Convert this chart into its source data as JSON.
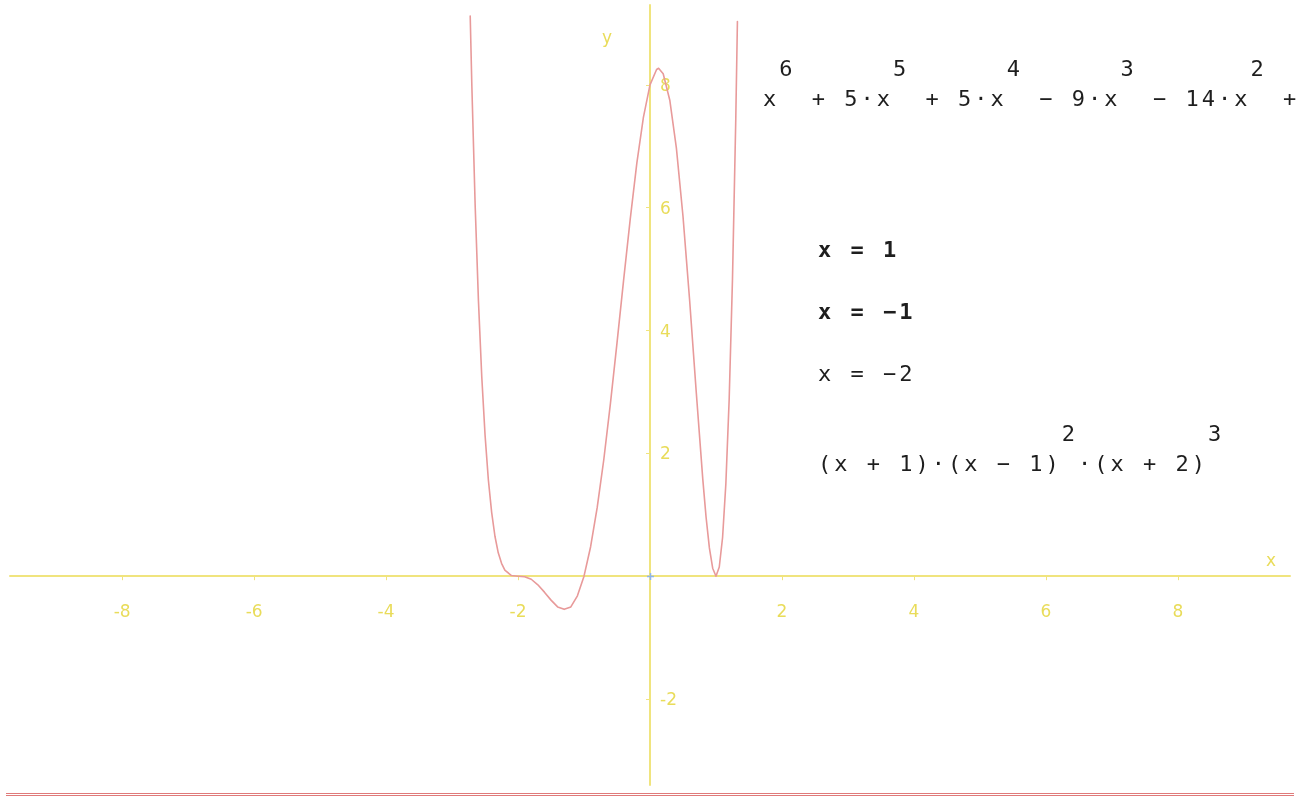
{
  "chart_data": {
    "type": "line",
    "xlabel": "x",
    "ylabel": "y",
    "annotations": [
      "x$^{6}$ + 5·x$^{5}$ + 5·x$^{4}$ − 9·x$^{3}$ − 14·x$^{2}$ +",
      "x = 1",
      "x = −1",
      "x = −2",
      "(x + 1)·(x − 1)$^{2}$·(x + 2)$^{3}$"
    ],
    "series": [
      {
        "color": "#e89a9a",
        "x": [
          -2.725,
          -2.7,
          -2.65,
          -2.6,
          -2.55,
          -2.5,
          -2.45,
          -2.4,
          -2.35,
          -2.3,
          -2.25,
          -2.2,
          -2.1,
          -2.0,
          -1.9,
          -1.8,
          -1.7,
          -1.6,
          -1.5,
          -1.4,
          -1.3,
          -1.2,
          -1.1,
          -1.0,
          -0.9,
          -0.8,
          -0.7,
          -0.6,
          -0.5,
          -0.4,
          -0.3,
          -0.2,
          -0.1,
          0,
          0.1,
          0.13,
          0.2,
          0.3,
          0.4,
          0.5,
          0.6,
          0.7,
          0.8,
          0.85,
          0.9,
          0.95,
          1.0,
          1.05,
          1.1,
          1.15,
          1.2,
          1.25,
          1.3,
          1.325
        ],
        "values": [
          9.12,
          7.98,
          6.04,
          4.48,
          3.25,
          2.3,
          1.57,
          1.04,
          0.65,
          0.38,
          0.21,
          0.1,
          0.01,
          0,
          -0.01,
          -0.05,
          -0.14,
          -0.26,
          -0.39,
          -0.5,
          -0.54,
          -0.5,
          -0.32,
          0,
          0.48,
          1.12,
          1.9,
          2.81,
          3.8,
          4.82,
          5.81,
          6.72,
          7.47,
          8,
          8.25,
          8.27,
          8.18,
          7.75,
          6.97,
          5.86,
          4.5,
          3.01,
          1.58,
          0.96,
          0.46,
          0.13,
          0,
          0.15,
          0.63,
          1.51,
          2.88,
          4.83,
          7.44,
          9.03
        ]
      }
    ],
    "xlim": [
      -9.7,
      9.7
    ],
    "ylim": [
      -3.4,
      9.3
    ],
    "xticks": [
      -8,
      -6,
      -4,
      -2,
      2,
      4,
      6,
      8
    ],
    "yticks": [
      -2,
      2,
      4,
      6,
      8
    ],
    "marker": "none",
    "line_style": "solid"
  }
}
